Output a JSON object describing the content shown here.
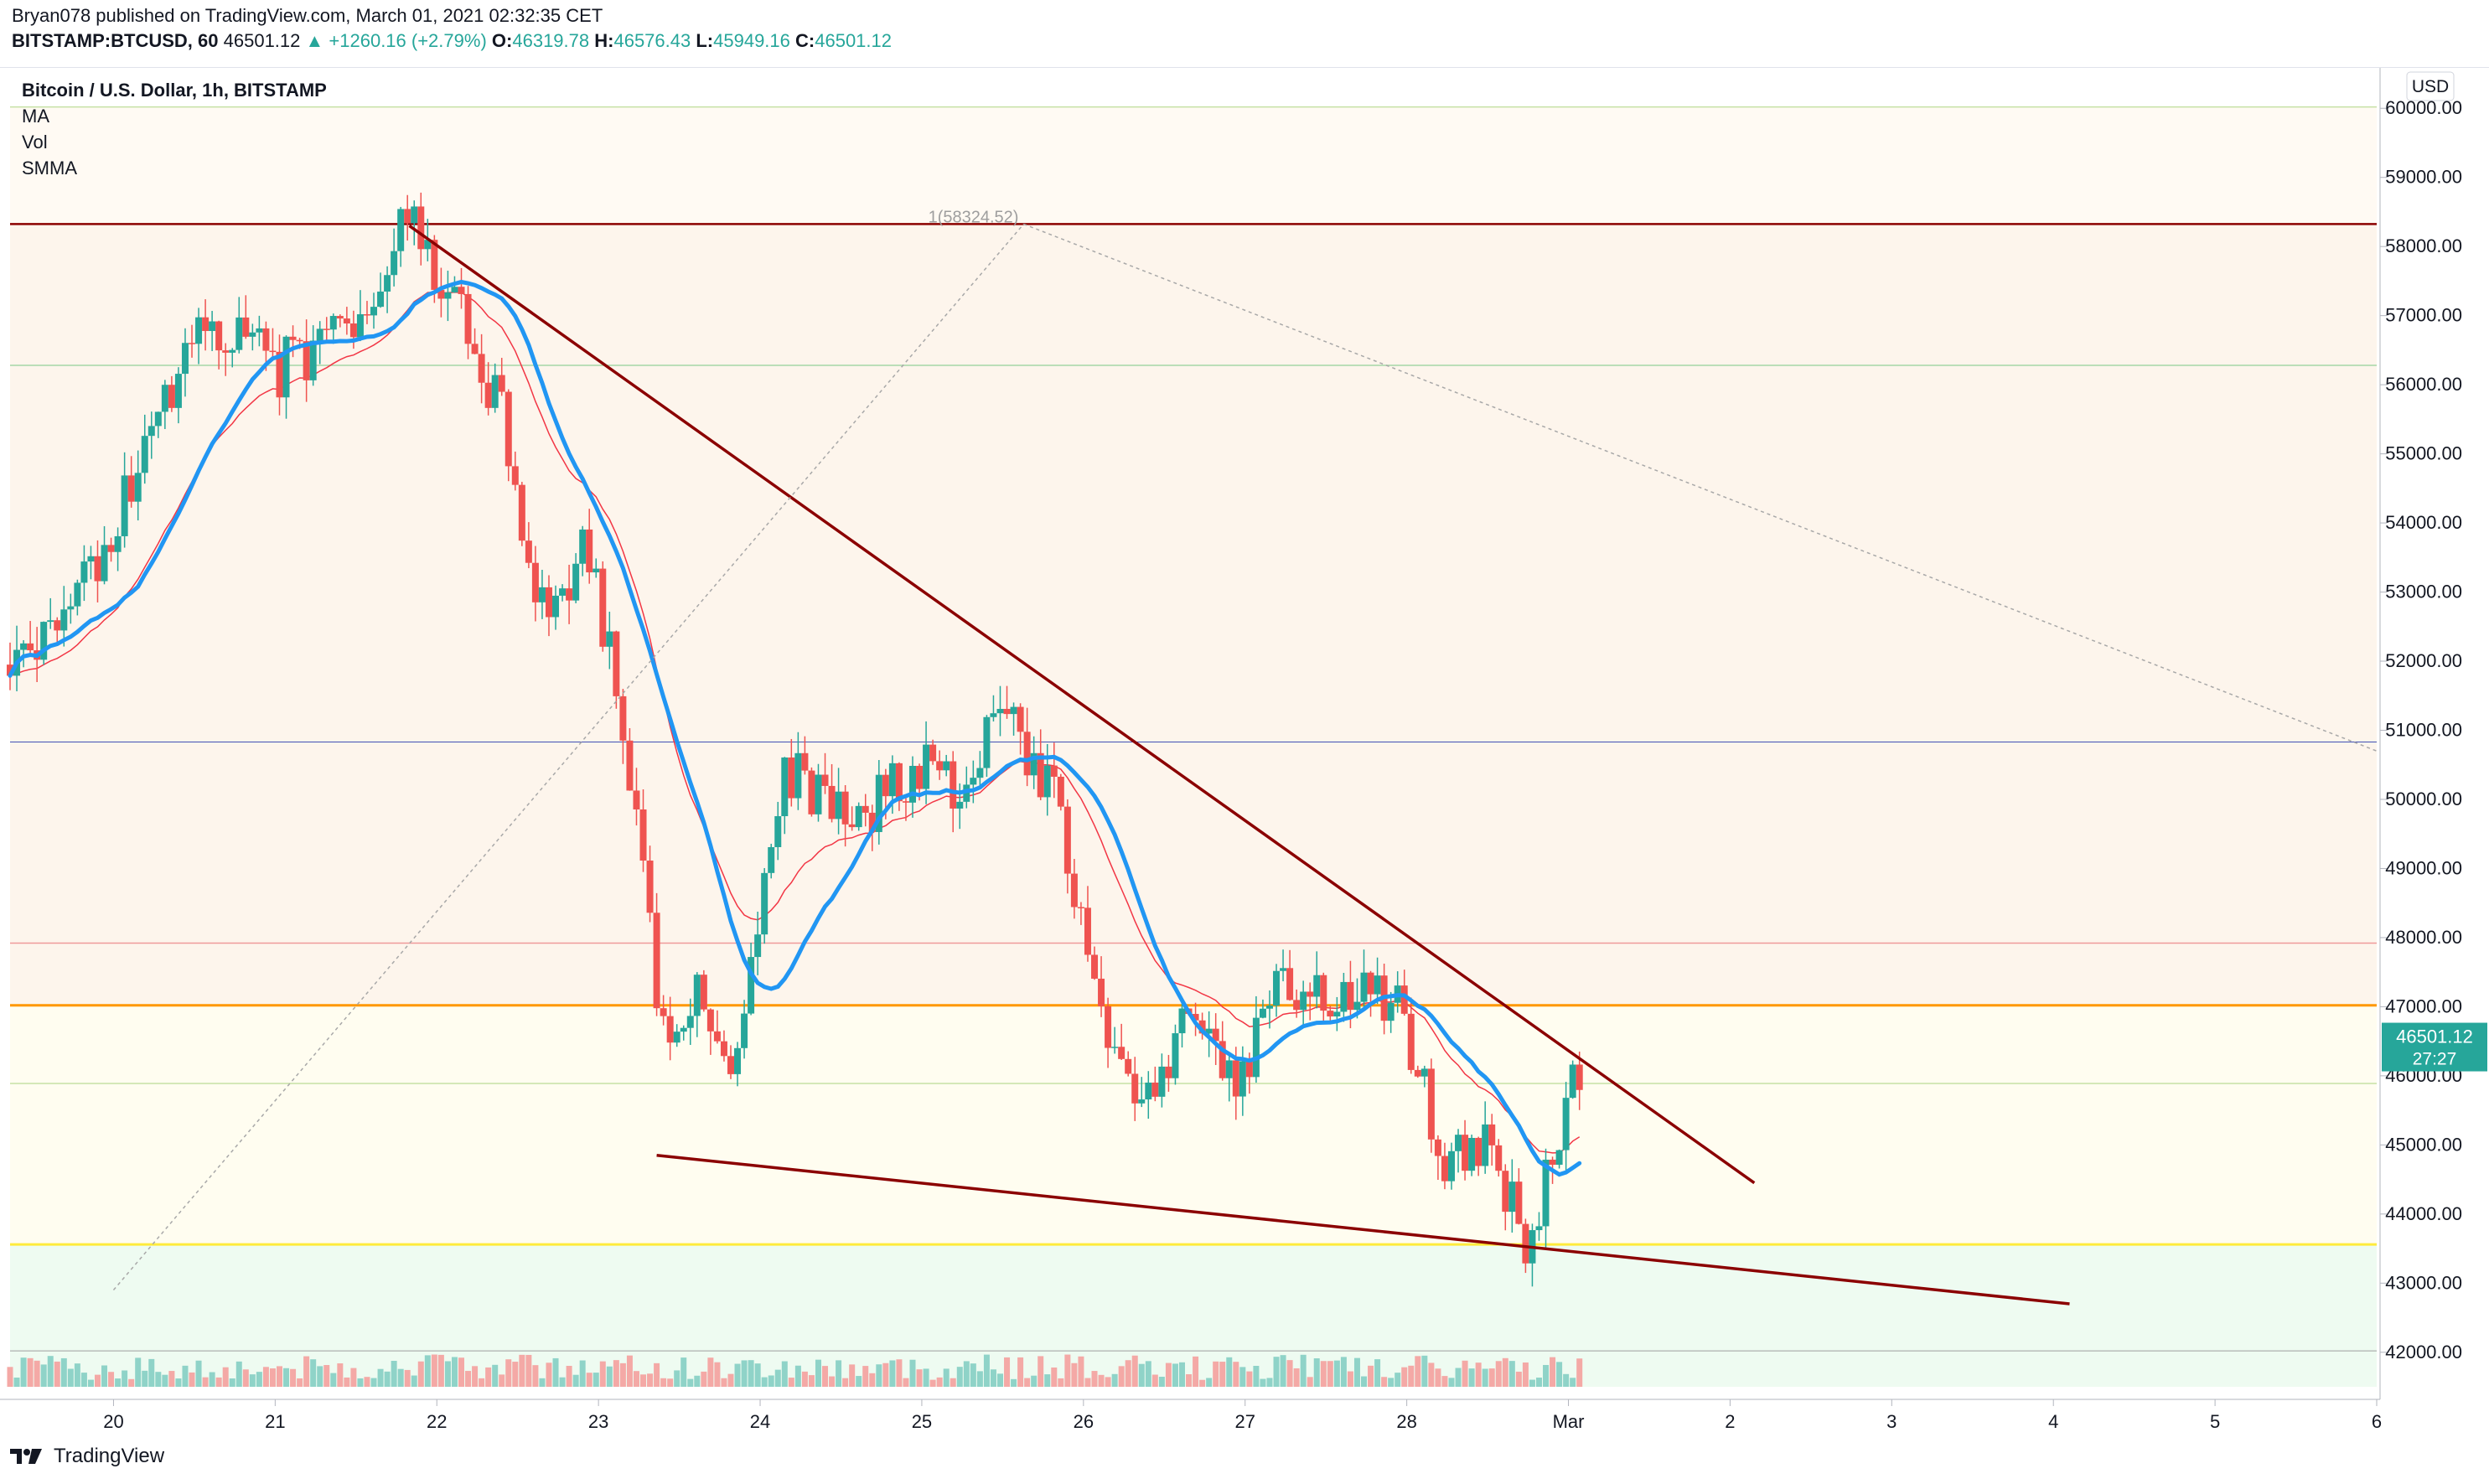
{
  "header": {
    "line1": "Bryan078 published on TradingView.com, March 01, 2021 02:32:35 CET",
    "symbol": "BITSTAMP:BTCUSD, 60",
    "last": "46501.12",
    "change": "▲ +1260.16 (+2.79%)",
    "o_label": "O:",
    "o": "46319.78",
    "h_label": "H:",
    "h": "46576.43",
    "l_label": "L:",
    "l": "45949.16",
    "c_label": "C:",
    "c": "46501.12"
  },
  "legend": {
    "title": "Bitcoin / U.S. Dollar, 1h, BITSTAMP",
    "items": [
      "MA",
      "Vol",
      "SMMA"
    ]
  },
  "footer": {
    "brand": "TradingView"
  },
  "colors": {
    "up": "#26a69a",
    "down": "#ef5350",
    "ma": "#2196f3",
    "smma": "#f23645",
    "trendline": "#8b0000",
    "orange": "#ff9800",
    "yellow": "#ffeb3b",
    "blue": "#3f51b5"
  },
  "chart_data": {
    "type": "candlestick",
    "currency": "USD",
    "price_axis": {
      "range": [
        41500,
        60500
      ],
      "ticks": [
        "42000.00",
        "43000.00",
        "44000.00",
        "45000.00",
        "46000.00",
        "47000.00",
        "48000.00",
        "49000.00",
        "50000.00",
        "51000.00",
        "52000.00",
        "53000.00",
        "54000.00",
        "55000.00",
        "56000.00",
        "57000.00",
        "58000.00",
        "59000.00",
        "60000.00"
      ]
    },
    "time_axis": {
      "ticks": [
        {
          "label": "20",
          "day": 20
        },
        {
          "label": "21",
          "day": 21
        },
        {
          "label": "22",
          "day": 22
        },
        {
          "label": "23",
          "day": 23
        },
        {
          "label": "24",
          "day": 24
        },
        {
          "label": "25",
          "day": 25
        },
        {
          "label": "26",
          "day": 26
        },
        {
          "label": "27",
          "day": 27
        },
        {
          "label": "28",
          "day": 28
        },
        {
          "label": "Mar",
          "day": 29
        },
        {
          "label": "2",
          "day": 30
        },
        {
          "label": "3",
          "day": 31
        },
        {
          "label": "4",
          "day": 32
        },
        {
          "label": "5",
          "day": 33
        },
        {
          "label": "6",
          "day": 34
        }
      ],
      "range": [
        19.36,
        34.0
      ]
    },
    "last_price": {
      "value": 46501.12,
      "label": "46501.12",
      "countdown": "27:27"
    },
    "fib_label": "1(58324.52)",
    "anchors": [
      {
        "day": 19.36,
        "price": 51950
      },
      {
        "day": 19.8,
        "price": 53000
      },
      {
        "day": 20.6,
        "price": 57000
      },
      {
        "day": 21.0,
        "price": 56200
      },
      {
        "day": 21.4,
        "price": 56800
      },
      {
        "day": 21.83,
        "price": 58300
      },
      {
        "day": 22.1,
        "price": 57200
      },
      {
        "day": 22.4,
        "price": 55500
      },
      {
        "day": 22.6,
        "price": 52600
      },
      {
        "day": 22.95,
        "price": 53700
      },
      {
        "day": 23.2,
        "price": 50200
      },
      {
        "day": 23.4,
        "price": 46500
      },
      {
        "day": 23.6,
        "price": 47200
      },
      {
        "day": 23.85,
        "price": 46000
      },
      {
        "day": 24.15,
        "price": 50500
      },
      {
        "day": 24.55,
        "price": 49600
      },
      {
        "day": 24.95,
        "price": 50500
      },
      {
        "day": 25.2,
        "price": 50300
      },
      {
        "day": 25.55,
        "price": 51100
      },
      {
        "day": 25.8,
        "price": 50200
      },
      {
        "day": 26.05,
        "price": 47400
      },
      {
        "day": 26.35,
        "price": 45400
      },
      {
        "day": 26.7,
        "price": 47000
      },
      {
        "day": 26.95,
        "price": 45500
      },
      {
        "day": 27.15,
        "price": 47300
      },
      {
        "day": 27.6,
        "price": 46900
      },
      {
        "day": 27.9,
        "price": 47300
      },
      {
        "day": 28.25,
        "price": 44600
      },
      {
        "day": 28.5,
        "price": 45200
      },
      {
        "day": 28.75,
        "price": 43300
      },
      {
        "day": 28.95,
        "price": 45200
      },
      {
        "day": 29.1,
        "price": 46501
      }
    ],
    "seed": 78,
    "trendlines": [
      {
        "name": "upper",
        "from": {
          "day": 21.83,
          "price": 58300
        },
        "to": {
          "day": 30.15,
          "price": 44450
        },
        "color": "#8b0000"
      },
      {
        "name": "lower",
        "from": {
          "day": 23.36,
          "price": 44850
        },
        "to": {
          "day": 32.1,
          "price": 42700
        },
        "color": "#8b0000"
      },
      {
        "name": "fib-diag",
        "from": {
          "day": 20.0,
          "price": 42900
        },
        "to": {
          "day": 25.63,
          "price": 58324.52
        },
        "dashed": true
      },
      {
        "name": "fib-desc",
        "from": {
          "day": 25.63,
          "price": 58324.52
        },
        "to": {
          "day": 34.0,
          "price": 50700
        },
        "dashed": true
      }
    ],
    "levels": [
      {
        "price": 58324.52,
        "color": "#8b0000",
        "width": 2.5
      },
      {
        "price": 56280,
        "color": "#a5d6a7",
        "width": 1.5
      },
      {
        "price": 50830,
        "color": "#3f51b5",
        "width": 1
      },
      {
        "price": 47920,
        "color": "#ef9a9a",
        "width": 1.5
      },
      {
        "price": 47020,
        "color": "#ff9800",
        "width": 3
      },
      {
        "price": 45890,
        "color": "#c5e1a5",
        "width": 1.5
      },
      {
        "price": 43560,
        "color": "#ffeb3b",
        "width": 3
      },
      {
        "price": 42020,
        "color": "#9e9e9e",
        "width": 1
      },
      {
        "price": 60020,
        "color": "#c5e1a5",
        "width": 1.5
      }
    ]
  }
}
